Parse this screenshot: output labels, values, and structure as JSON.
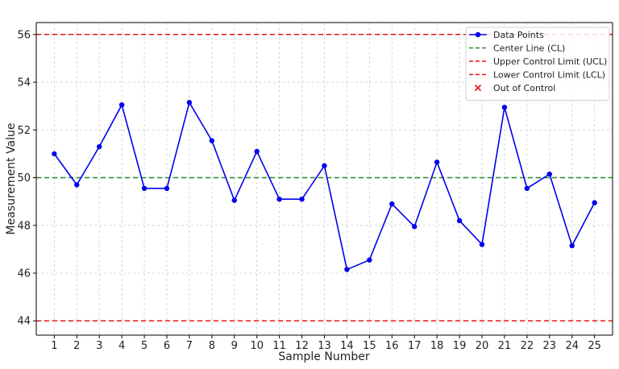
{
  "chart_data": {
    "type": "line",
    "xlabel": "Sample Number",
    "ylabel": "Measurement Value",
    "x": [
      1,
      2,
      3,
      4,
      5,
      6,
      7,
      8,
      9,
      10,
      11,
      12,
      13,
      14,
      15,
      16,
      17,
      18,
      19,
      20,
      21,
      22,
      23,
      24,
      25
    ],
    "xlim": [
      0.2,
      25.8
    ],
    "ylim": [
      43.4,
      56.5
    ],
    "yticks": [
      44,
      46,
      48,
      50,
      52,
      54,
      56
    ],
    "grid": true,
    "legend_position": "top-right",
    "series": [
      {
        "name": "Data Points",
        "color": "#0000ee",
        "marker": "circle",
        "values": [
          51.0,
          49.7,
          51.3,
          53.05,
          49.55,
          49.55,
          53.15,
          51.55,
          49.05,
          51.1,
          49.1,
          49.1,
          50.5,
          46.15,
          46.55,
          48.9,
          47.95,
          50.65,
          48.2,
          47.2,
          52.95,
          49.55,
          50.15,
          47.15,
          48.95
        ]
      }
    ],
    "reference_lines": [
      {
        "name": "Center Line (CL)",
        "value": 50,
        "color": "#228b22",
        "style": "dashed"
      },
      {
        "name": "Upper Control Limit (UCL)",
        "value": 56,
        "color": "#ee1111",
        "style": "dashed"
      },
      {
        "name": "Lower Control Limit (LCL)",
        "value": 44,
        "color": "#ee1111",
        "style": "dashed"
      }
    ],
    "out_of_control": {
      "name": "Out of Control",
      "color": "#ee1111",
      "marker": "x",
      "points": []
    },
    "legend": [
      {
        "label": "Data Points",
        "kind": "line-marker",
        "color": "#0000ee"
      },
      {
        "label": "Center Line (CL)",
        "kind": "dashed",
        "color": "#228b22"
      },
      {
        "label": "Upper Control Limit (UCL)",
        "kind": "dashed",
        "color": "#ee1111"
      },
      {
        "label": "Lower Control Limit (LCL)",
        "kind": "dashed",
        "color": "#ee1111"
      },
      {
        "label": "Out of Control",
        "kind": "x",
        "color": "#ee1111"
      }
    ]
  }
}
